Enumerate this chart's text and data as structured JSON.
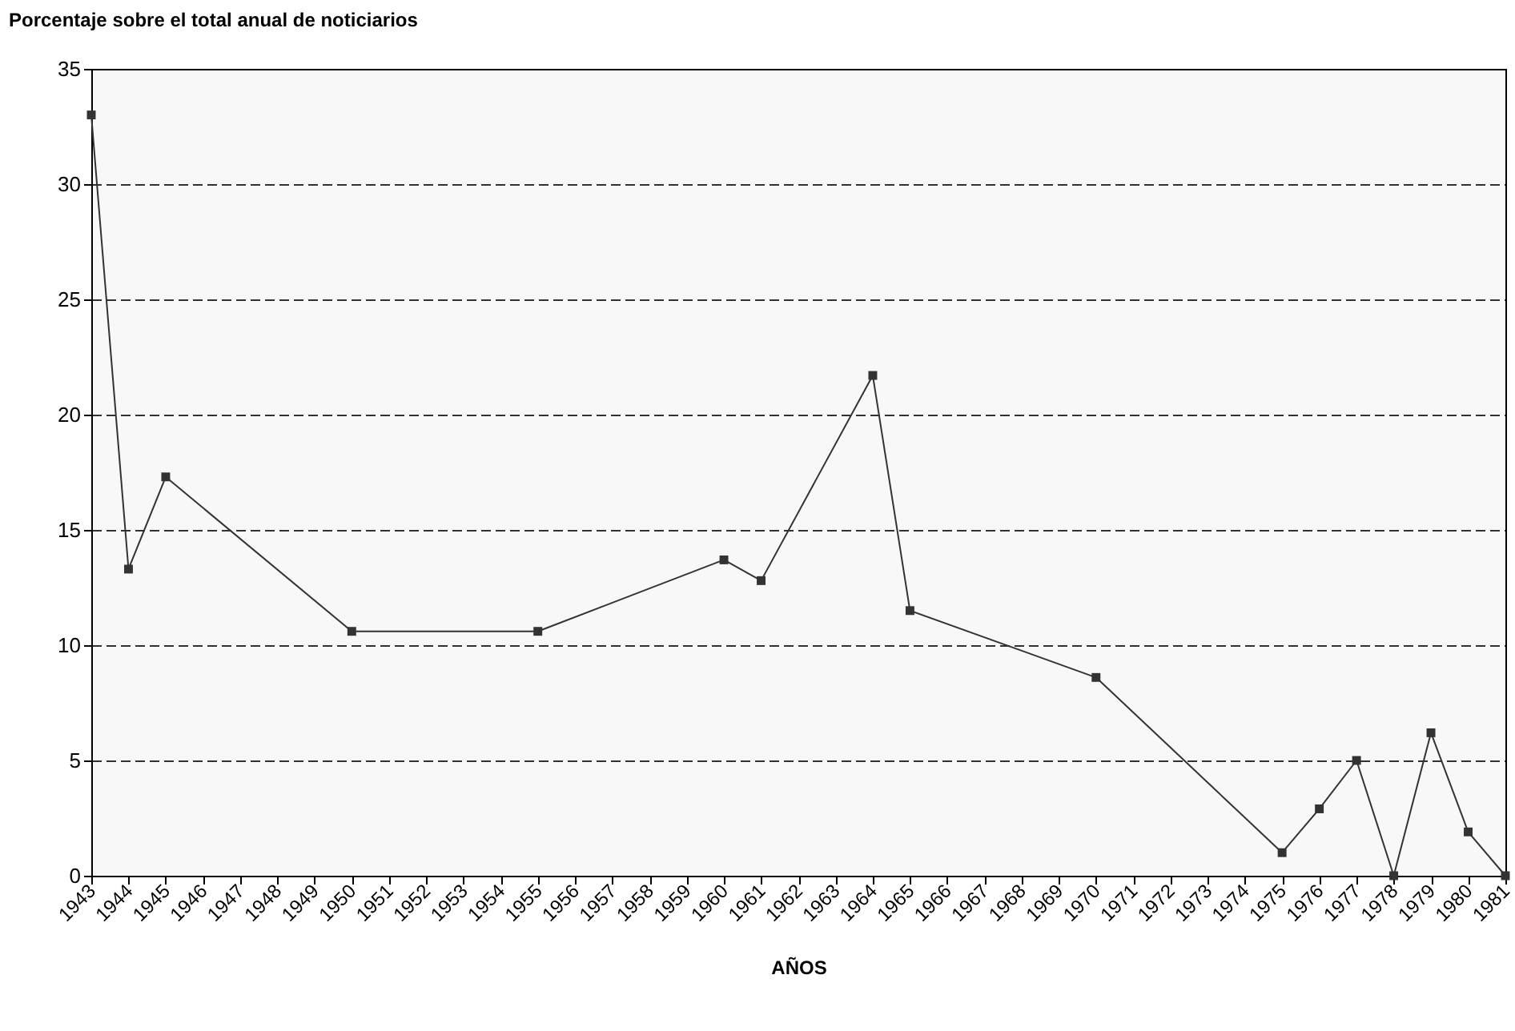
{
  "chart_data": {
    "type": "line",
    "ylabel": "Porcentaje sobre el total anual de noticiarios",
    "xlabel": "AÑOS",
    "x": [
      1943,
      1944,
      1945,
      1950,
      1955,
      1960,
      1961,
      1964,
      1965,
      1970,
      1975,
      1976,
      1977,
      1978,
      1979,
      1980,
      1981
    ],
    "series": [
      {
        "color": "#333333",
        "values": [
          33,
          13.3,
          17.3,
          10.6,
          10.6,
          13.7,
          12.8,
          21.7,
          11.5,
          8.6,
          1.0,
          2.9,
          5.0,
          0,
          6.2,
          1.9,
          0
        ]
      }
    ],
    "xlim": [
      1943,
      1981
    ],
    "xticks": [
      1943,
      1944,
      1945,
      1946,
      1947,
      1948,
      1949,
      1950,
      1951,
      1952,
      1953,
      1954,
      1955,
      1956,
      1957,
      1958,
      1959,
      1960,
      1961,
      1962,
      1963,
      1964,
      1965,
      1966,
      1967,
      1968,
      1969,
      1970,
      1971,
      1972,
      1973,
      1974,
      1975,
      1976,
      1977,
      1978,
      1979,
      1980,
      1981
    ],
    "ylim": [
      0,
      35
    ],
    "yticks": [
      0,
      5,
      10,
      15,
      20,
      25,
      30,
      35
    ],
    "grid": "y",
    "marker": "square",
    "line_style": "solid",
    "legend": false
  }
}
